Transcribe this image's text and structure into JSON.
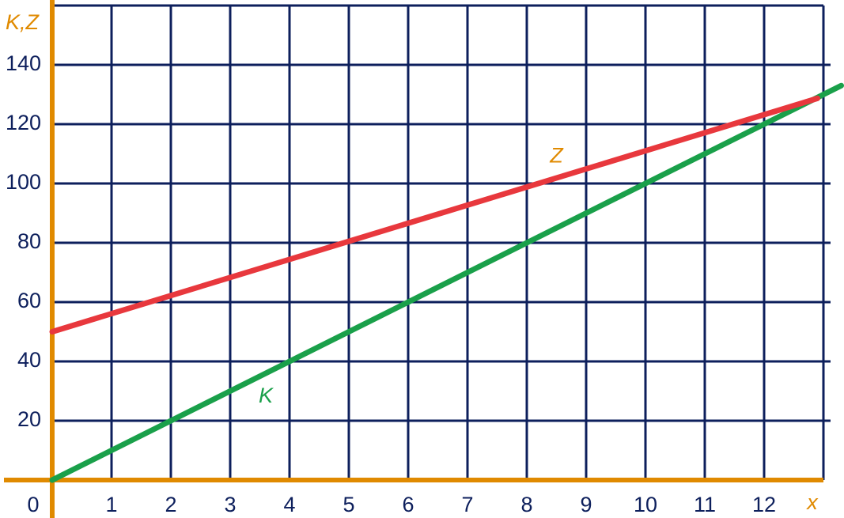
{
  "chart_data": {
    "type": "line",
    "x_label": "x",
    "y_label": "K,Z",
    "origin_label": "0",
    "xlim": [
      0,
      13
    ],
    "ylim": [
      0,
      160
    ],
    "xticks": [
      1,
      2,
      3,
      4,
      5,
      6,
      7,
      8,
      9,
      10,
      11,
      12
    ],
    "yticks": [
      20,
      40,
      60,
      80,
      100,
      120,
      140
    ],
    "grid": true,
    "grid_color": "#0d1f5c",
    "axis_color": "#e08a00",
    "series": [
      {
        "name": "K",
        "color": "#1aa04a",
        "x": [
          0,
          13.3
        ],
        "values": [
          0,
          133
        ]
      },
      {
        "name": "Z",
        "color": "#e8383d",
        "x": [
          0,
          12.9
        ],
        "values": [
          50,
          128.7
        ]
      }
    ],
    "annotations": [
      {
        "text": "Z",
        "x": 8.5,
        "y": 109,
        "color": "#e08a00"
      },
      {
        "text": "K",
        "x": 3.6,
        "y": 28,
        "color": "#1aa04a"
      }
    ]
  }
}
